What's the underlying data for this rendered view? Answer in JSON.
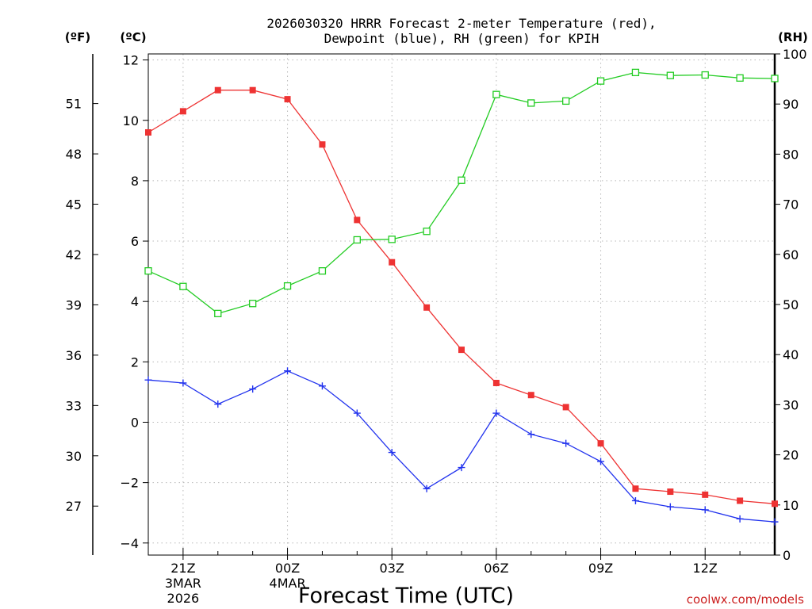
{
  "chart_data": {
    "type": "line",
    "title": [
      "2026030320 HRRR Forecast 2-meter Temperature (red),",
      "Dewpoint (blue), RH (green) for KPIH"
    ],
    "xlabel": "Forecast Time (UTC)",
    "watermark": "coolwx.com/models",
    "unit_labels": {
      "fahrenheit": "(ºF)",
      "celsius": "(ºC)",
      "rh": "(RH)"
    },
    "x": [
      "20Z",
      "21Z",
      "22Z",
      "23Z",
      "00Z",
      "01Z",
      "02Z",
      "03Z",
      "04Z",
      "05Z",
      "06Z",
      "07Z",
      "08Z",
      "09Z",
      "10Z",
      "11Z",
      "12Z",
      "13Z",
      "14Z"
    ],
    "x_ticks": [
      {
        "label": "21Z",
        "index": 1,
        "sub": [
          "3MAR",
          "2026"
        ]
      },
      {
        "label": "00Z",
        "index": 4,
        "sub": [
          "4MAR"
        ]
      },
      {
        "label": "03Z",
        "index": 7,
        "sub": []
      },
      {
        "label": "06Z",
        "index": 10,
        "sub": []
      },
      {
        "label": "09Z",
        "index": 13,
        "sub": []
      },
      {
        "label": "12Z",
        "index": 16,
        "sub": []
      }
    ],
    "y_celsius": {
      "range": [
        -4.4,
        12.2
      ],
      "ticks": [
        -4,
        -2,
        0,
        2,
        4,
        6,
        8,
        10,
        12
      ],
      "tick_labels": [
        "−4",
        "−2",
        "0",
        "2",
        "4",
        "6",
        "8",
        "10",
        "12"
      ]
    },
    "y_fahrenheit": {
      "ticks": [
        27,
        30,
        33,
        36,
        39,
        42,
        45,
        48,
        51
      ],
      "tick_labels": [
        "27",
        "30",
        "33",
        "36",
        "39",
        "42",
        "45",
        "48",
        "51"
      ]
    },
    "y_rh": {
      "range": [
        0,
        100
      ],
      "ticks": [
        0,
        10,
        20,
        30,
        40,
        50,
        60,
        70,
        80,
        90,
        100
      ],
      "tick_labels": [
        "0",
        "10",
        "20",
        "30",
        "40",
        "50",
        "60",
        "70",
        "80",
        "90",
        "100"
      ]
    },
    "grid": true,
    "series": [
      {
        "name": "2-meter Temperature",
        "axis": "celsius",
        "color": "#ee3333",
        "marker": "filled-square",
        "values": [
          9.6,
          10.3,
          11.0,
          11.0,
          10.7,
          9.2,
          6.7,
          5.3,
          3.8,
          2.4,
          1.3,
          0.9,
          0.5,
          -0.7,
          -2.2,
          -2.3,
          -2.4,
          -2.6,
          -2.7
        ]
      },
      {
        "name": "Dewpoint",
        "axis": "celsius",
        "color": "#2233ee",
        "marker": "plus",
        "values": [
          1.4,
          1.3,
          0.6,
          1.1,
          1.7,
          1.2,
          0.3,
          -1.0,
          -2.2,
          -1.5,
          0.3,
          -0.4,
          -0.7,
          -1.3,
          -2.6,
          -2.8,
          -2.9,
          -3.2,
          -3.3
        ]
      },
      {
        "name": "RH",
        "axis": "rh",
        "color": "#22cc22",
        "marker": "open-square",
        "values": [
          56.7,
          53.6,
          48.2,
          50.2,
          53.7,
          56.7,
          62.9,
          63.0,
          64.6,
          74.8,
          91.9,
          90.2,
          90.6,
          94.6,
          96.3,
          95.7,
          95.8,
          95.2,
          95.1
        ]
      }
    ]
  }
}
